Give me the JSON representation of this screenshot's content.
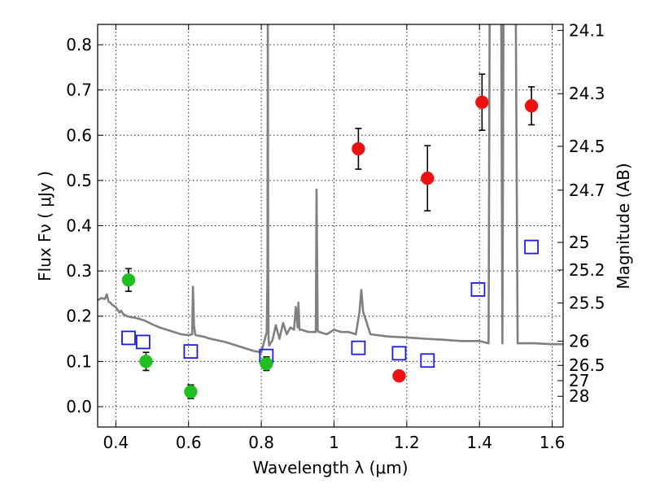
{
  "chart_data": {
    "type": "scatter",
    "title": "",
    "xlabel": "Wavelength  λ (μm)",
    "ylabel": "Flux  Fν  ( μJy )",
    "ylabel_right": "Magnitude (AB)",
    "xlim": [
      0.35,
      1.63
    ],
    "ylim": [
      -0.045,
      0.845
    ],
    "grid": true,
    "x_ticks": [
      0.4,
      0.6,
      0.8,
      1.0,
      1.2,
      1.4,
      1.6
    ],
    "x_tick_labels": [
      "0.4",
      "0.6",
      "0.8",
      "1",
      "1.2",
      "1.4",
      "1.6"
    ],
    "y_ticks": [
      0.0,
      0.1,
      0.2,
      0.3,
      0.4,
      0.5,
      0.6,
      0.7,
      0.8
    ],
    "y_tick_labels": [
      "0.0",
      "0.1",
      "0.2",
      "0.3",
      "0.4",
      "0.5",
      "0.6",
      "0.7",
      "0.8"
    ],
    "right_ticks": [
      {
        "mag": 24.1,
        "label": "24.1"
      },
      {
        "mag": 24.3,
        "label": "24.3"
      },
      {
        "mag": 24.5,
        "label": "24.5"
      },
      {
        "mag": 24.7,
        "label": "24.7"
      },
      {
        "mag": 25.0,
        "label": "25"
      },
      {
        "mag": 25.2,
        "label": "25.2"
      },
      {
        "mag": 25.5,
        "label": "25.5"
      },
      {
        "mag": 26.0,
        "label": "26"
      },
      {
        "mag": 26.5,
        "label": "26.5"
      },
      {
        "mag": 27.0,
        "label": "27"
      },
      {
        "mag": 28.0,
        "label": "28"
      }
    ],
    "series": [
      {
        "marker": "circle",
        "color": "#1fbf1f",
        "x": [
          0.435,
          0.483,
          0.606,
          0.814
        ],
        "y": [
          0.28,
          0.1,
          0.033,
          0.095
        ],
        "err": [
          0.025,
          0.02,
          0.015,
          0.015
        ]
      },
      {
        "marker": "circle",
        "color": "#ee1111",
        "x": [
          1.067,
          1.179,
          1.257,
          1.407,
          1.543
        ],
        "y": [
          0.57,
          0.068,
          0.505,
          0.673,
          0.665
        ],
        "err": [
          0.045,
          0.01,
          0.072,
          0.062,
          0.042
        ]
      },
      {
        "marker": "open-square",
        "color": "#1a1aee",
        "x": [
          0.435,
          0.475,
          0.606,
          0.814,
          1.067,
          1.179,
          1.257,
          1.396,
          1.543
        ],
        "y": [
          0.152,
          0.143,
          0.122,
          0.112,
          0.13,
          0.118,
          0.102,
          0.259,
          0.353
        ]
      },
      {
        "marker": "line",
        "color": "#808080",
        "x": [
          0.35,
          0.36,
          0.37,
          0.375,
          0.38,
          0.385,
          0.39,
          0.4,
          0.41,
          0.415,
          0.42,
          0.43,
          0.44,
          0.45,
          0.46,
          0.48,
          0.5,
          0.52,
          0.54,
          0.56,
          0.58,
          0.6,
          0.61,
          0.612,
          0.615,
          0.618,
          0.62,
          0.64,
          0.66,
          0.7,
          0.74,
          0.78,
          0.8,
          0.815,
          0.817,
          0.818,
          0.819,
          0.82,
          0.822,
          0.825,
          0.83,
          0.84,
          0.85,
          0.86,
          0.87,
          0.88,
          0.89,
          0.895,
          0.9,
          0.902,
          0.905,
          0.91,
          0.93,
          0.95,
          0.952,
          0.955,
          0.958,
          0.96,
          0.98,
          1.0,
          1.02,
          1.04,
          1.06,
          1.07,
          1.075,
          1.08,
          1.1,
          1.15,
          1.2,
          1.25,
          1.3,
          1.35,
          1.4,
          1.425,
          1.428,
          1.432,
          1.44,
          1.45,
          1.46,
          1.463,
          1.466,
          1.47,
          1.48,
          1.49,
          1.5,
          1.505,
          1.51,
          1.55,
          1.6,
          1.63
        ],
        "y": [
          0.235,
          0.24,
          0.238,
          0.248,
          0.232,
          0.23,
          0.225,
          0.22,
          0.208,
          0.212,
          0.205,
          0.2,
          0.198,
          0.197,
          0.195,
          0.19,
          0.182,
          0.175,
          0.17,
          0.165,
          0.16,
          0.158,
          0.16,
          0.265,
          0.18,
          0.16,
          0.158,
          0.155,
          0.15,
          0.143,
          0.133,
          0.123,
          0.12,
          0.165,
          0.3,
          0.85,
          0.3,
          0.15,
          0.135,
          0.14,
          0.145,
          0.18,
          0.15,
          0.185,
          0.16,
          0.175,
          0.17,
          0.22,
          0.175,
          0.23,
          0.17,
          0.17,
          0.165,
          0.165,
          0.48,
          0.17,
          0.165,
          0.165,
          0.16,
          0.17,
          0.165,
          0.165,
          0.16,
          0.21,
          0.258,
          0.21,
          0.16,
          0.155,
          0.153,
          0.15,
          0.148,
          0.145,
          0.145,
          0.14,
          0.85,
          0.85,
          0.85,
          0.85,
          0.85,
          0.14,
          0.85,
          0.85,
          0.85,
          0.85,
          0.85,
          0.14,
          0.14,
          0.14,
          0.138,
          0.138
        ]
      }
    ]
  }
}
